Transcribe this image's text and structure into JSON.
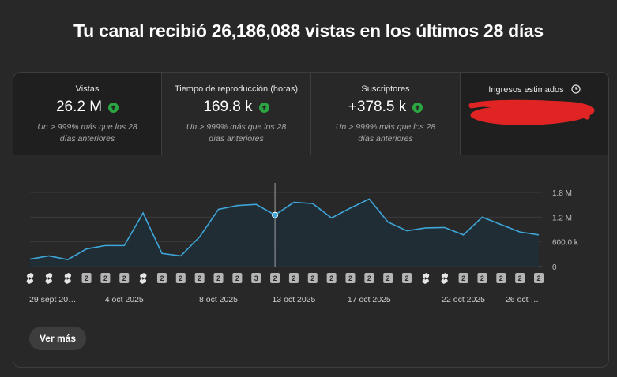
{
  "headline": "Tu canal recibió 26,186,088 vistas en los últimos 28 días",
  "metrics": [
    {
      "label": "Vistas",
      "value": "26.2 M",
      "note": "Un > 999% más que los 28 días anteriores"
    },
    {
      "label": "Tiempo de reproducción (horas)",
      "value": "169.8 k",
      "note": "Un > 999% más que los 28 días anteriores"
    },
    {
      "label": "Suscriptores",
      "value": "+378.5 k",
      "note": "Un > 999% más que los 28 días anteriores"
    },
    {
      "label": "Ingresos estimados",
      "value": "",
      "note": ""
    }
  ],
  "colors": {
    "line": "#3ea6d9",
    "up": "#2ba640",
    "redaction": "#e02424"
  },
  "chart_data": {
    "type": "area",
    "x_labels": [
      "29 sept 20…",
      "4 oct 2025",
      "8 oct 2025",
      "13 oct 2025",
      "17 oct 2025",
      "22 oct 2025",
      "26 oct …"
    ],
    "y_ticks": [
      "1.8 M",
      "1.2 M",
      "600.0 k",
      "0"
    ],
    "ylim": [
      0,
      1800000
    ],
    "values": [
      180000,
      260000,
      170000,
      430000,
      510000,
      510000,
      1300000,
      320000,
      260000,
      720000,
      1390000,
      1480000,
      1510000,
      1250000,
      1560000,
      1530000,
      1180000,
      1420000,
      1640000,
      1080000,
      870000,
      940000,
      950000,
      770000,
      1200000,
      1020000,
      840000,
      770000
    ],
    "highlight_index": 13,
    "markers": [
      "s",
      "s",
      "s",
      "2",
      "2",
      "2",
      "s",
      "2",
      "2",
      "2",
      "2",
      "2",
      "3",
      "2",
      "2",
      "2",
      "2",
      "2",
      "2",
      "2",
      "2",
      "s",
      "s",
      "2",
      "2",
      "2",
      "2",
      "2"
    ]
  },
  "button": {
    "ver_mas": "Ver más"
  }
}
